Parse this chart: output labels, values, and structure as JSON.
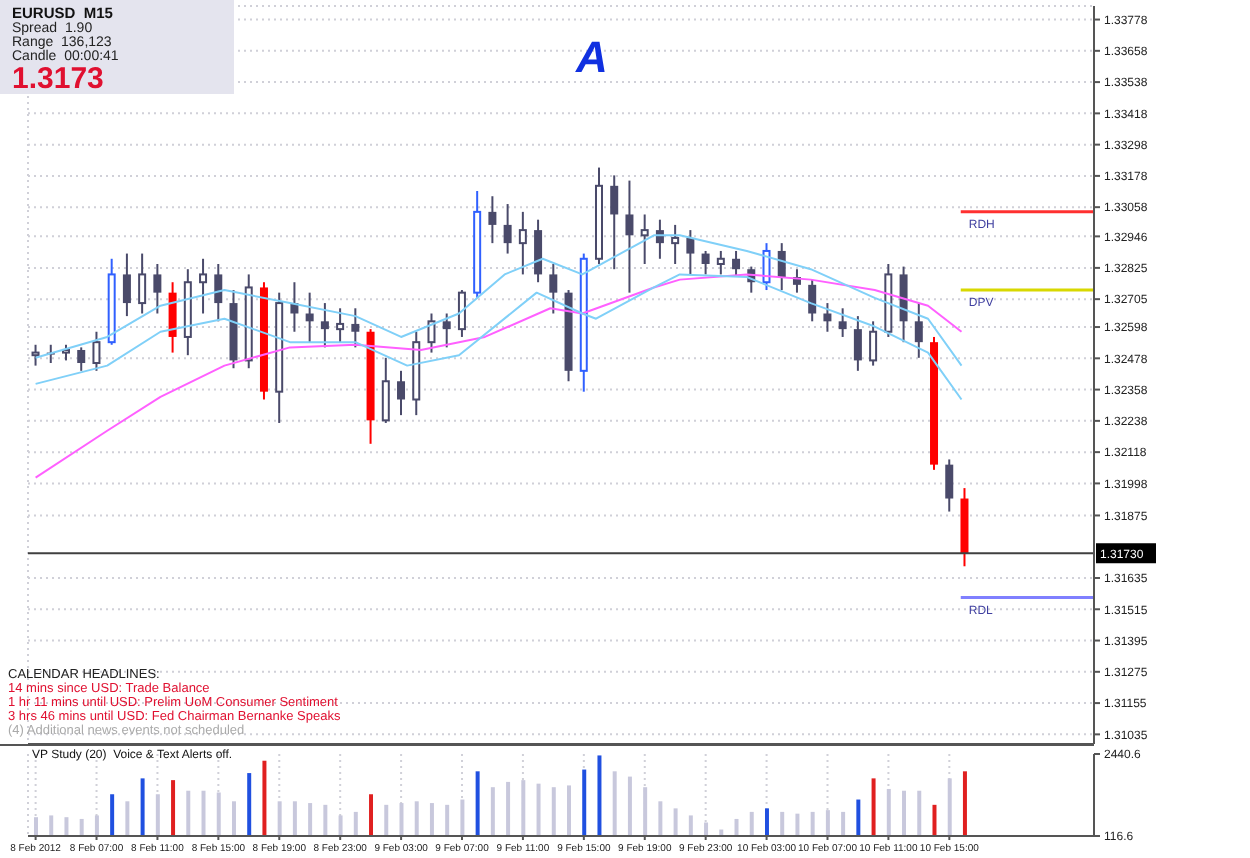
{
  "chart_data": [
    {
      "type": "candlestick",
      "title": "EURUSD  M15",
      "annotations": [
        "Spread  1.90",
        "Range  136,123",
        "Candle  00:00:41",
        "1.3173",
        "A",
        "CALENDAR HEADLINES:",
        "14 mins since USD: Trade Balance",
        "1 hr 11 mins until USD: Prelim UoM Consumer Sentiment",
        "3 hrs 46 mins until USD: Fed Chairman Bernanke Speaks",
        "(4) Additional news events not scheduled"
      ],
      "x": [
        "2012-02-08T03:00",
        "2012-02-08T04:00",
        "2012-02-08T05:00",
        "2012-02-08T06:00",
        "2012-02-08T07:00",
        "2012-02-08T08:00",
        "2012-02-08T09:00",
        "2012-02-08T10:00",
        "2012-02-08T11:00",
        "2012-02-08T12:00",
        "2012-02-08T13:00",
        "2012-02-08T14:00",
        "2012-02-08T15:00",
        "2012-02-08T16:00",
        "2012-02-08T17:00",
        "2012-02-08T18:00",
        "2012-02-08T19:00",
        "2012-02-08T20:00",
        "2012-02-08T21:00",
        "2012-02-08T22:00",
        "2012-02-08T23:00",
        "2012-02-09T00:00",
        "2012-02-09T01:00",
        "2012-02-09T02:00",
        "2012-02-09T03:00",
        "2012-02-09T04:00",
        "2012-02-09T05:00",
        "2012-02-09T06:00",
        "2012-02-09T07:00",
        "2012-02-09T08:00",
        "2012-02-09T09:00",
        "2012-02-09T10:00",
        "2012-02-09T11:00",
        "2012-02-09T12:00",
        "2012-02-09T13:00",
        "2012-02-09T14:00",
        "2012-02-09T15:00",
        "2012-02-09T16:00",
        "2012-02-09T17:00",
        "2012-02-09T18:00",
        "2012-02-09T19:00",
        "2012-02-09T20:00",
        "2012-02-09T21:00",
        "2012-02-09T22:00",
        "2012-02-09T23:00",
        "2012-02-10T00:00",
        "2012-02-10T01:00",
        "2012-02-10T02:00",
        "2012-02-10T03:00",
        "2012-02-10T04:00",
        "2012-02-10T05:00",
        "2012-02-10T06:00",
        "2012-02-10T07:00",
        "2012-02-10T08:00",
        "2012-02-10T09:00",
        "2012-02-10T10:00",
        "2012-02-10T11:00",
        "2012-02-10T12:00",
        "2012-02-10T13:00",
        "2012-02-10T14:00",
        "2012-02-10T15:00",
        "2012-02-10T16:00"
      ],
      "ohlc": [
        [
          1.3249,
          1.3253,
          1.3245,
          1.325
        ],
        [
          1.325,
          1.3253,
          1.3246,
          1.325
        ],
        [
          1.325,
          1.3253,
          1.3247,
          1.3251
        ],
        [
          1.3251,
          1.3252,
          1.3243,
          1.3246
        ],
        [
          1.3246,
          1.3258,
          1.3243,
          1.3254
        ],
        [
          1.3254,
          1.3286,
          1.3253,
          1.328
        ],
        [
          1.328,
          1.3288,
          1.3264,
          1.3269
        ],
        [
          1.3269,
          1.3288,
          1.3265,
          1.328
        ],
        [
          1.328,
          1.3284,
          1.3265,
          1.3273
        ],
        [
          1.3273,
          1.3277,
          1.325,
          1.3256
        ],
        [
          1.3256,
          1.3282,
          1.3249,
          1.3277
        ],
        [
          1.3277,
          1.3286,
          1.3265,
          1.328
        ],
        [
          1.328,
          1.3284,
          1.3262,
          1.3269
        ],
        [
          1.3269,
          1.3274,
          1.3244,
          1.3247
        ],
        [
          1.3247,
          1.328,
          1.3244,
          1.3275
        ],
        [
          1.3275,
          1.3277,
          1.3232,
          1.3235
        ],
        [
          1.3235,
          1.3273,
          1.3223,
          1.3269
        ],
        [
          1.3269,
          1.3277,
          1.3258,
          1.3265
        ],
        [
          1.3265,
          1.3273,
          1.3254,
          1.3262
        ],
        [
          1.3262,
          1.3269,
          1.3252,
          1.3259
        ],
        [
          1.3259,
          1.3267,
          1.3254,
          1.3261
        ],
        [
          1.3261,
          1.3267,
          1.3252,
          1.3258
        ],
        [
          1.3258,
          1.3259,
          1.3215,
          1.3224
        ],
        [
          1.3224,
          1.3248,
          1.3223,
          1.3239
        ],
        [
          1.3239,
          1.3243,
          1.3226,
          1.3232
        ],
        [
          1.3232,
          1.3258,
          1.3226,
          1.3254
        ],
        [
          1.3254,
          1.3265,
          1.325,
          1.3262
        ],
        [
          1.3262,
          1.3265,
          1.3252,
          1.3259
        ],
        [
          1.3259,
          1.3274,
          1.3256,
          1.3273
        ],
        [
          1.3273,
          1.3312,
          1.3271,
          1.3304
        ],
        [
          1.3304,
          1.331,
          1.3292,
          1.3299
        ],
        [
          1.3299,
          1.3307,
          1.3288,
          1.3292
        ],
        [
          1.3292,
          1.3304,
          1.328,
          1.3297
        ],
        [
          1.3297,
          1.3301,
          1.3277,
          1.328
        ],
        [
          1.328,
          1.3284,
          1.3265,
          1.3273
        ],
        [
          1.3273,
          1.3274,
          1.3239,
          1.3243
        ],
        [
          1.3243,
          1.3288,
          1.3235,
          1.3286
        ],
        [
          1.3286,
          1.3321,
          1.3284,
          1.3314
        ],
        [
          1.3314,
          1.3318,
          1.3282,
          1.3303
        ],
        [
          1.3303,
          1.3316,
          1.3273,
          1.3295
        ],
        [
          1.3295,
          1.3303,
          1.3284,
          1.3297
        ],
        [
          1.3297,
          1.3301,
          1.3286,
          1.3292
        ],
        [
          1.3292,
          1.3299,
          1.3284,
          1.3294
        ],
        [
          1.3294,
          1.3297,
          1.328,
          1.3288
        ],
        [
          1.3288,
          1.3289,
          1.328,
          1.3284
        ],
        [
          1.3284,
          1.3289,
          1.328,
          1.3286
        ],
        [
          1.3286,
          1.3289,
          1.3279,
          1.3282
        ],
        [
          1.3282,
          1.3283,
          1.3273,
          1.3277
        ],
        [
          1.3277,
          1.3292,
          1.3274,
          1.3289
        ],
        [
          1.3289,
          1.3292,
          1.3274,
          1.3279
        ],
        [
          1.3279,
          1.3282,
          1.3273,
          1.3276
        ],
        [
          1.3276,
          1.3278,
          1.3262,
          1.3265
        ],
        [
          1.3265,
          1.3269,
          1.3258,
          1.3262
        ],
        [
          1.3262,
          1.3267,
          1.3256,
          1.3259
        ],
        [
          1.3259,
          1.3264,
          1.3243,
          1.3247
        ],
        [
          1.3247,
          1.3262,
          1.3245,
          1.3258
        ],
        [
          1.3258,
          1.3284,
          1.3256,
          1.328
        ],
        [
          1.328,
          1.3283,
          1.3254,
          1.3262
        ],
        [
          1.3262,
          1.3269,
          1.3248,
          1.3254
        ],
        [
          1.3254,
          1.3256,
          1.3205,
          1.3207
        ],
        [
          1.3207,
          1.3209,
          1.3189,
          1.3194
        ],
        [
          1.3194,
          1.3198,
          1.3168,
          1.3173
        ]
      ],
      "colors": [
        "#4a4a6a",
        "#4a4a6a",
        "#4a4a6a",
        "#4a4a6a",
        "#4a4a6a",
        "#3060ff",
        "#4a4a6a",
        "#4a4a6a",
        "#4a4a6a",
        "#ff0000",
        "#4a4a6a",
        "#4a4a6a",
        "#4a4a6a",
        "#4a4a6a",
        "#4a4a6a",
        "#ff0000",
        "#4a4a6a",
        "#4a4a6a",
        "#4a4a6a",
        "#4a4a6a",
        "#4a4a6a",
        "#4a4a6a",
        "#ff0000",
        "#4a4a6a",
        "#4a4a6a",
        "#4a4a6a",
        "#4a4a6a",
        "#4a4a6a",
        "#4a4a6a",
        "#3060ff",
        "#4a4a6a",
        "#4a4a6a",
        "#4a4a6a",
        "#4a4a6a",
        "#4a4a6a",
        "#4a4a6a",
        "#3060ff",
        "#4a4a6a",
        "#4a4a6a",
        "#4a4a6a",
        "#4a4a6a",
        "#4a4a6a",
        "#4a4a6a",
        "#4a4a6a",
        "#4a4a6a",
        "#4a4a6a",
        "#4a4a6a",
        "#4a4a6a",
        "#3060ff",
        "#4a4a6a",
        "#4a4a6a",
        "#4a4a6a",
        "#4a4a6a",
        "#4a4a6a",
        "#4a4a6a",
        "#4a4a6a",
        "#4a4a6a",
        "#4a4a6a",
        "#4a4a6a",
        "#ff0000",
        "#4a4a6a",
        "#ff0000"
      ],
      "series": [
        {
          "type": "line",
          "color": "#ff60ff",
          "x": [
            "2012-02-08T03:00",
            "2012-02-08T07:42",
            "2012-02-08T11:12",
            "2012-02-08T15:24",
            "2012-02-08T19:42",
            "2012-02-09T00:00",
            "2012-02-09T04:18",
            "2012-02-09T08:30",
            "2012-02-09T12:48",
            "2012-02-09T14:54",
            "2012-02-09T19:36",
            "2012-02-09T21:18",
            "2012-02-10T01:42",
            "2012-02-10T05:54",
            "2012-02-10T10:06",
            "2012-02-10T13:36",
            "2012-02-10T15:48"
          ],
          "values": [
            1.3202,
            1.322,
            1.3233,
            1.3245,
            1.3252,
            1.3253,
            1.3251,
            1.3256,
            1.3267,
            1.3265,
            1.3275,
            1.3278,
            1.328,
            1.3278,
            1.3274,
            1.3268,
            1.3258
          ]
        },
        {
          "type": "line",
          "color": "#80d0f8",
          "x": [
            "2012-02-08T03:00",
            "2012-02-08T07:42",
            "2012-02-08T11:12",
            "2012-02-08T15:24",
            "2012-02-08T19:42",
            "2012-02-09T00:00",
            "2012-02-09T03:00",
            "2012-02-09T06:48",
            "2012-02-09T09:48",
            "2012-02-09T12:18",
            "2012-02-09T14:54",
            "2012-02-09T19:36",
            "2012-02-09T21:18",
            "2012-02-10T01:42",
            "2012-02-10T05:54",
            "2012-02-10T10:06",
            "2012-02-10T13:36",
            "2012-02-10T15:48"
          ],
          "values": [
            1.3248,
            1.3256,
            1.3268,
            1.3274,
            1.3269,
            1.3264,
            1.3256,
            1.3265,
            1.328,
            1.3286,
            1.328,
            1.3295,
            1.3295,
            1.3289,
            1.3282,
            1.3271,
            1.3263,
            1.3245
          ]
        },
        {
          "type": "line",
          "color": "#80d0f8",
          "x": [
            "2012-02-08T03:00",
            "2012-02-08T07:42",
            "2012-02-08T11:12",
            "2012-02-08T15:24",
            "2012-02-08T19:42",
            "2012-02-09T00:00",
            "2012-02-09T03:24",
            "2012-02-09T06:48",
            "2012-02-09T11:54",
            "2012-02-09T14:54",
            "2012-02-09T15:48",
            "2012-02-09T19:36",
            "2012-02-09T21:18",
            "2012-02-10T01:42",
            "2012-02-10T05:54",
            "2012-02-10T10:06",
            "2012-02-10T13:36",
            "2012-02-10T15:48"
          ],
          "values": [
            1.3238,
            1.3245,
            1.3258,
            1.3263,
            1.3254,
            1.3254,
            1.3245,
            1.3249,
            1.3273,
            1.3265,
            1.3263,
            1.3275,
            1.328,
            1.3279,
            1.3269,
            1.326,
            1.325,
            1.3232
          ]
        }
      ],
      "xlim": [
        "2012-02-08T02:30",
        "2012-02-11T00:30"
      ],
      "xticks": [
        {
          "value": "2012-02-08T03:00",
          "label": null
        },
        {
          "value": "2012-02-08T07:00",
          "label": null
        },
        {
          "value": "2012-02-08T11:00",
          "label": null
        },
        {
          "value": "2012-02-08T15:00",
          "label": null
        },
        {
          "value": "2012-02-08T19:00",
          "label": null
        },
        {
          "value": "2012-02-08T23:00",
          "label": null
        },
        {
          "value": "2012-02-09T03:00",
          "label": null
        },
        {
          "value": "2012-02-09T07:00",
          "label": null
        },
        {
          "value": "2012-02-09T11:00",
          "label": null
        },
        {
          "value": "2012-02-09T15:00",
          "label": null
        },
        {
          "value": "2012-02-09T19:00",
          "label": null
        },
        {
          "value": "2012-02-09T23:00",
          "label": null
        },
        {
          "value": "2012-02-10T03:00",
          "label": null
        },
        {
          "value": "2012-02-10T07:00",
          "label": null
        },
        {
          "value": "2012-02-10T11:00",
          "label": null
        },
        {
          "value": "2012-02-10T15:00",
          "label": null
        }
      ],
      "ylim": [
        1.30998,
        1.3383
      ],
      "yticks": [
        1.31035,
        1.31155,
        1.31275,
        1.31395,
        1.31515,
        1.31635,
        1.31875,
        1.31998,
        1.32118,
        1.32238,
        1.32358,
        1.32478,
        1.32598,
        1.32705,
        1.32825,
        1.32946,
        1.33058,
        1.33178,
        1.33298,
        1.33418,
        1.33538,
        1.33658,
        1.33778
      ],
      "ref_lines": [
        {
          "axis": "y",
          "value": 1.3173,
          "label": "1.31730",
          "color": "#404040"
        },
        {
          "axis": "y",
          "value": 1.3304,
          "label": "RDH",
          "color": "#ff3030"
        },
        {
          "axis": "y",
          "value": 1.3274,
          "label": "DPV",
          "color": "#d8d800"
        },
        {
          "axis": "y",
          "value": 1.3156,
          "label": "RDL",
          "color": "#8080ff"
        }
      ],
      "grid": true,
      "tick_labels": "y"
    },
    {
      "type": "bar",
      "title": "VP Study (20)  Voice & Text Alerts off.",
      "x": [
        "2012-02-08T03:00",
        "2012-02-08T04:00",
        "2012-02-08T05:00",
        "2012-02-08T06:00",
        "2012-02-08T07:00",
        "2012-02-08T08:00",
        "2012-02-08T09:00",
        "2012-02-08T10:00",
        "2012-02-08T11:00",
        "2012-02-08T12:00",
        "2012-02-08T13:00",
        "2012-02-08T14:00",
        "2012-02-08T15:00",
        "2012-02-08T16:00",
        "2012-02-08T17:00",
        "2012-02-08T18:00",
        "2012-02-08T19:00",
        "2012-02-08T20:00",
        "2012-02-08T21:00",
        "2012-02-08T22:00",
        "2012-02-08T23:00",
        "2012-02-09T00:00",
        "2012-02-09T01:00",
        "2012-02-09T02:00",
        "2012-02-09T03:00",
        "2012-02-09T04:00",
        "2012-02-09T05:00",
        "2012-02-09T06:00",
        "2012-02-09T07:00",
        "2012-02-09T08:00",
        "2012-02-09T09:00",
        "2012-02-09T10:00",
        "2012-02-09T11:00",
        "2012-02-09T12:00",
        "2012-02-09T13:00",
        "2012-02-09T14:00",
        "2012-02-09T15:00",
        "2012-02-09T16:00",
        "2012-02-09T17:00",
        "2012-02-09T18:00",
        "2012-02-09T19:00",
        "2012-02-09T20:00",
        "2012-02-09T21:00",
        "2012-02-09T22:00",
        "2012-02-09T23:00",
        "2012-02-10T00:00",
        "2012-02-10T01:00",
        "2012-02-10T02:00",
        "2012-02-10T03:00",
        "2012-02-10T04:00",
        "2012-02-10T05:00",
        "2012-02-10T06:00",
        "2012-02-10T07:00",
        "2012-02-10T08:00",
        "2012-02-10T09:00",
        "2012-02-10T10:00",
        "2012-02-10T11:00",
        "2012-02-10T12:00",
        "2012-02-10T13:00",
        "2012-02-10T14:00",
        "2012-02-10T15:00",
        "2012-02-10T16:00"
      ],
      "values": [
        650,
        700,
        650,
        600,
        700,
        1300,
        1100,
        1750,
        1300,
        1700,
        1400,
        1400,
        1350,
        1100,
        1900,
        2250,
        1100,
        1100,
        1050,
        1000,
        700,
        800,
        1300,
        1000,
        1050,
        1100,
        1050,
        1000,
        1150,
        1950,
        1500,
        1650,
        1700,
        1600,
        1500,
        1550,
        2000,
        2400,
        1950,
        1800,
        1500,
        1100,
        900,
        700,
        500,
        300,
        600,
        800,
        900,
        800,
        750,
        800,
        850,
        800,
        1150,
        1750,
        1450,
        1400,
        1400,
        1000,
        1750,
        1950
      ],
      "colors": [
        "#c8c8dc",
        "#c8c8dc",
        "#c8c8dc",
        "#c8c8dc",
        "#c8c8dc",
        "#2050e0",
        "#c8c8dc",
        "#2050e0",
        "#c8c8dc",
        "#e02020",
        "#c8c8dc",
        "#c8c8dc",
        "#c8c8dc",
        "#c8c8dc",
        "#2050e0",
        "#e02020",
        "#c8c8dc",
        "#c8c8dc",
        "#c8c8dc",
        "#c8c8dc",
        "#c8c8dc",
        "#c8c8dc",
        "#e02020",
        "#c8c8dc",
        "#c8c8dc",
        "#c8c8dc",
        "#c8c8dc",
        "#c8c8dc",
        "#c8c8dc",
        "#2050e0",
        "#c8c8dc",
        "#c8c8dc",
        "#c8c8dc",
        "#c8c8dc",
        "#c8c8dc",
        "#c8c8dc",
        "#2050e0",
        "#2050e0",
        "#c8c8dc",
        "#c8c8dc",
        "#c8c8dc",
        "#c8c8dc",
        "#c8c8dc",
        "#c8c8dc",
        "#c8c8dc",
        "#c8c8dc",
        "#c8c8dc",
        "#c8c8dc",
        "#2050e0",
        "#c8c8dc",
        "#c8c8dc",
        "#c8c8dc",
        "#c8c8dc",
        "#c8c8dc",
        "#2050e0",
        "#e02020",
        "#c8c8dc",
        "#c8c8dc",
        "#c8c8dc",
        "#e02020",
        "#c8c8dc",
        "#e02020"
      ],
      "xlim": [
        "2012-02-08T02:30",
        "2012-02-11T00:30"
      ],
      "xticks": [
        {
          "value": "2012-02-08T03:00",
          "label": "8 Feb 2012"
        },
        {
          "value": "2012-02-08T07:00",
          "label": "8 Feb 07:00"
        },
        {
          "value": "2012-02-08T11:00",
          "label": "8 Feb 11:00"
        },
        {
          "value": "2012-02-08T15:00",
          "label": "8 Feb 15:00"
        },
        {
          "value": "2012-02-08T19:00",
          "label": "8 Feb 19:00"
        },
        {
          "value": "2012-02-08T23:00",
          "label": "8 Feb 23:00"
        },
        {
          "value": "2012-02-09T03:00",
          "label": "9 Feb 03:00"
        },
        {
          "value": "2012-02-09T07:00",
          "label": "9 Feb 07:00"
        },
        {
          "value": "2012-02-09T11:00",
          "label": "9 Feb 11:00"
        },
        {
          "value": "2012-02-09T15:00",
          "label": "9 Feb 15:00"
        },
        {
          "value": "2012-02-09T19:00",
          "label": "9 Feb 19:00"
        },
        {
          "value": "2012-02-09T23:00",
          "label": "9 Feb 23:00"
        },
        {
          "value": "2012-02-10T03:00",
          "label": "10 Feb 03:00"
        },
        {
          "value": "2012-02-10T07:00",
          "label": "10 Feb 07:00"
        },
        {
          "value": "2012-02-10T11:00",
          "label": "10 Feb 11:00"
        },
        {
          "value": "2012-02-10T15:00",
          "label": "10 Feb 15:00"
        }
      ],
      "ylim": [
        116.6,
        2440.6
      ],
      "yticks": [
        116.6,
        2440.6
      ],
      "grid": "x"
    }
  ]
}
